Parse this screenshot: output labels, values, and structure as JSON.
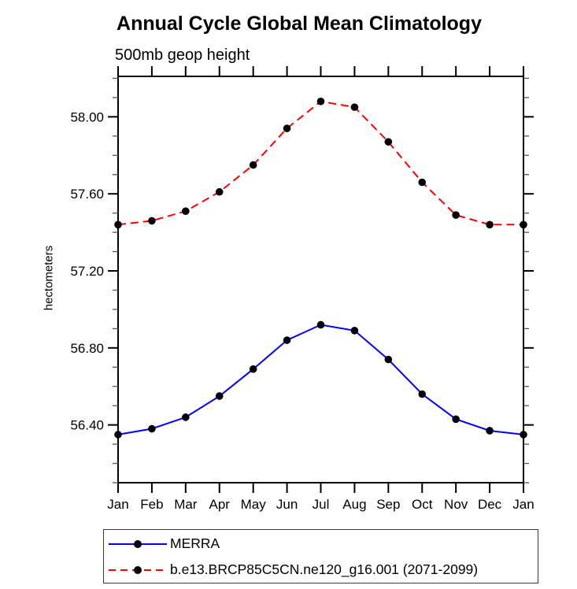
{
  "page": {
    "background": "#ffffff",
    "frame_color": "#000000",
    "minor_tick_color": "#555555",
    "legend_border_color": "#3a3a3a"
  },
  "chart_data": {
    "type": "line",
    "title": "Annual Cycle Global Mean Climatology",
    "subtitle": "500mb geop height",
    "xlabel": "",
    "ylabel": "hectometers",
    "categories": [
      "Jan",
      "Feb",
      "Mar",
      "Apr",
      "May",
      "Jun",
      "Jul",
      "Aug",
      "Sep",
      "Oct",
      "Nov",
      "Dec",
      "Jan"
    ],
    "ylim": [
      56.1,
      58.21
    ],
    "ytick_major": [
      58.0,
      57.6,
      57.2,
      56.8,
      56.4
    ],
    "ytick_labels": [
      "58.00",
      "57.60",
      "57.20",
      "56.80",
      "56.40"
    ],
    "ytick_minor_step": 0.1,
    "grid": false,
    "legend_position": "below-left-box",
    "series": [
      {
        "name": "MERRA",
        "color": "#0000ff",
        "style": "solid",
        "marker": "filled-circle",
        "marker_color": "#000000",
        "values": [
          56.35,
          56.38,
          56.44,
          56.55,
          56.69,
          56.84,
          56.92,
          56.89,
          56.74,
          56.56,
          56.43,
          56.37,
          56.35
        ]
      },
      {
        "name": "b.e13.BRCP85C5CN.ne120_g16.001 (2071-2099)",
        "color": "#ff0000",
        "style": "dashed",
        "marker": "filled-circle",
        "marker_color": "#000000",
        "values": [
          57.44,
          57.46,
          57.51,
          57.61,
          57.75,
          57.94,
          58.08,
          58.05,
          57.87,
          57.66,
          57.49,
          57.44,
          57.44
        ]
      }
    ]
  }
}
